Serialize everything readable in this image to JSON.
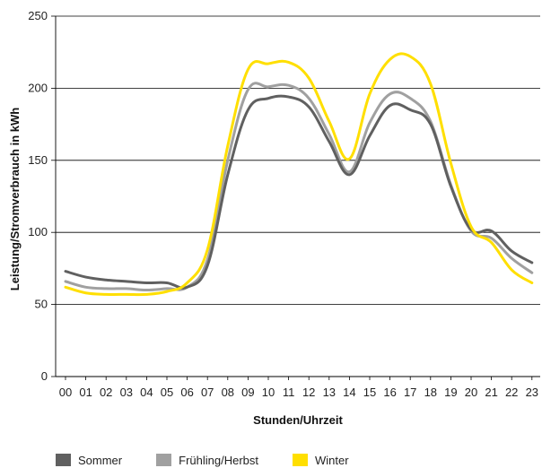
{
  "chart_data": {
    "type": "line",
    "title": "",
    "xlabel": "Stunden/Uhrzeit",
    "ylabel": "Leistung/Stromverbrauch in kWh",
    "ylim": [
      0,
      250
    ],
    "yticks": [
      0,
      50,
      100,
      150,
      200,
      250
    ],
    "grid": "horizontal",
    "legend_position": "bottom",
    "categories": [
      "00",
      "01",
      "02",
      "03",
      "04",
      "05",
      "06",
      "07",
      "08",
      "09",
      "10",
      "11",
      "12",
      "13",
      "14",
      "15",
      "16",
      "17",
      "18",
      "19",
      "20",
      "21",
      "22",
      "23"
    ],
    "series": [
      {
        "name": "Sommer",
        "color": "#606060",
        "values": [
          73,
          69,
          67,
          66,
          65,
          65,
          62,
          77,
          140,
          185,
          193,
          194,
          187,
          163,
          140,
          167,
          188,
          185,
          175,
          132,
          102,
          101,
          87,
          79
        ]
      },
      {
        "name": "Frühling/Herbst",
        "color": "#a0a0a0",
        "values": [
          66,
          62,
          61,
          61,
          60,
          61,
          62,
          81,
          150,
          199,
          201,
          202,
          193,
          168,
          142,
          176,
          196,
          193,
          177,
          133,
          101,
          96,
          82,
          72
        ]
      },
      {
        "name": "Winter",
        "color": "#ffdf00",
        "values": [
          62,
          58,
          57,
          57,
          57,
          59,
          65,
          88,
          160,
          213,
          217,
          218,
          207,
          177,
          151,
          196,
          220,
          222,
          203,
          148,
          104,
          93,
          74,
          65
        ]
      }
    ]
  }
}
